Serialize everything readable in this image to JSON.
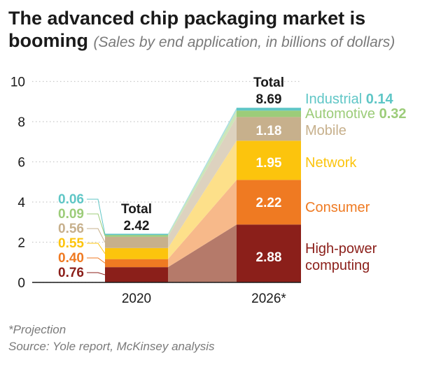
{
  "title": "The advanced chip packaging market is",
  "title_line2": "booming",
  "subtitle": "(Sales by end application, in billions of dollars)",
  "footnote": "*Projection",
  "source": "Source: Yole report, McKinsey analysis",
  "chart_data": {
    "type": "bar",
    "stacked": true,
    "categories": [
      "2020",
      "2026*"
    ],
    "ylim": [
      0,
      10
    ],
    "yticks": [
      0,
      2,
      4,
      6,
      8,
      10
    ],
    "grid": true,
    "series": [
      {
        "name": "High-power computing",
        "values": [
          0.76,
          2.88
        ],
        "color": "#8b1f1a",
        "fill": "#b57a6a"
      },
      {
        "name": "Consumer",
        "values": [
          0.4,
          2.22
        ],
        "color": "#ef7a22",
        "fill": "#f7b98a"
      },
      {
        "name": "Network",
        "values": [
          0.55,
          1.95
        ],
        "color": "#fcc40d",
        "fill": "#fde08a"
      },
      {
        "name": "Mobile",
        "values": [
          0.56,
          1.18
        ],
        "color": "#c7b08c",
        "fill": "#ddd2bf"
      },
      {
        "name": "Automotive",
        "values": [
          0.09,
          0.32
        ],
        "color": "#9ccc79",
        "fill": "#cce6b8"
      },
      {
        "name": "Industrial",
        "values": [
          0.06,
          0.14
        ],
        "color": "#5fc6c6",
        "fill": "#abe0e0"
      }
    ],
    "total_label": "Total",
    "totals": [
      "2.42",
      "8.69"
    ],
    "left_labels": [
      "0.76",
      "0.40",
      "0.55",
      "0.56",
      "0.09",
      "0.06"
    ],
    "inbar_labels": [
      "2.88",
      "2.22",
      "1.95",
      "1.18"
    ],
    "legend_names": [
      "High-power",
      "computing",
      "Consumer",
      "Network",
      "Mobile",
      "Automotive",
      "Industrial"
    ],
    "legend_values": [
      "0.32",
      "0.14"
    ]
  }
}
